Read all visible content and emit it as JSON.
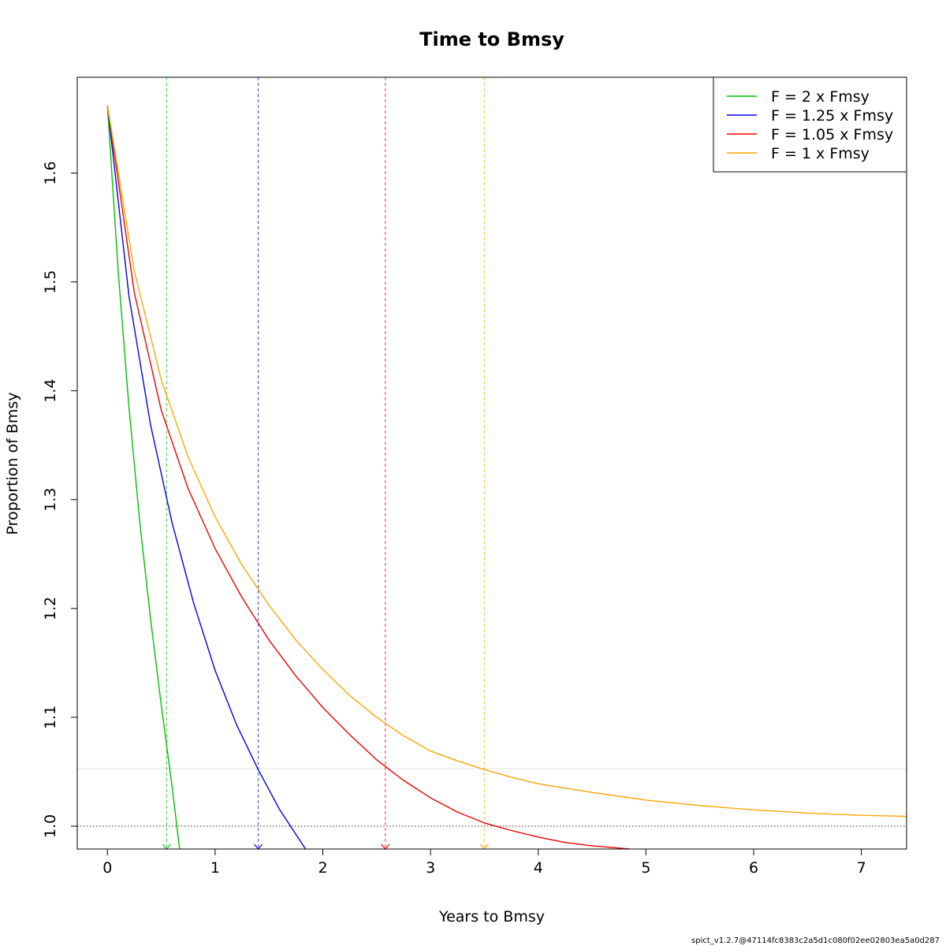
{
  "chart_data": {
    "type": "line",
    "title": "Time to Bmsy",
    "xlabel": "Years to Bmsy",
    "ylabel": "Proportion of Bmsy",
    "xlim": [
      -0.28,
      7.42
    ],
    "ylim": [
      0.979,
      1.688
    ],
    "xticks": [
      0,
      1,
      2,
      3,
      4,
      5,
      6,
      7
    ],
    "yticks": [
      1.0,
      1.1,
      1.2,
      1.3,
      1.4,
      1.5,
      1.6
    ],
    "ytick_labels": [
      "1.0",
      "1.1",
      "1.2",
      "1.3",
      "1.4",
      "1.5",
      "1.6"
    ],
    "grid": false,
    "legend_position": "top-right",
    "reference_lines": [
      {
        "y": 1.0,
        "style": "dotted",
        "color": "#555555"
      },
      {
        "y": 1.053,
        "style": "solid",
        "color": "#e6e6e6"
      }
    ],
    "series": [
      {
        "name": "F = 2 x Fmsy",
        "color": "#00c000",
        "t_target": 0.55,
        "x": [
          0,
          0.1,
          0.2,
          0.3,
          0.4,
          0.5,
          0.6,
          0.67
        ],
        "y": [
          1.662,
          1.51,
          1.385,
          1.28,
          1.191,
          1.111,
          1.037,
          0.979
        ]
      },
      {
        "name": "F = 1.25 x Fmsy",
        "color": "#0000ee",
        "t_target": 1.4,
        "x": [
          0,
          0.2,
          0.4,
          0.6,
          0.8,
          1.0,
          1.2,
          1.4,
          1.6,
          1.84
        ],
        "y": [
          1.662,
          1.487,
          1.369,
          1.279,
          1.205,
          1.143,
          1.093,
          1.052,
          1.015,
          0.979
        ]
      },
      {
        "name": "F = 1.05 x Fmsy",
        "color": "#ee0000",
        "t_target": 2.58,
        "x": [
          0,
          0.25,
          0.5,
          0.75,
          1.0,
          1.25,
          1.5,
          1.75,
          2.0,
          2.25,
          2.5,
          2.75,
          3.0,
          3.25,
          3.5,
          3.75,
          4.0,
          4.25,
          4.5,
          4.85
        ],
        "y": [
          1.662,
          1.49,
          1.382,
          1.31,
          1.255,
          1.21,
          1.171,
          1.138,
          1.109,
          1.084,
          1.061,
          1.042,
          1.026,
          1.013,
          1.003,
          0.996,
          0.99,
          0.985,
          0.982,
          0.979
        ]
      },
      {
        "name": "F = 1 x Fmsy",
        "color": "#ffa500",
        "t_target": 3.5,
        "x": [
          0,
          0.25,
          0.5,
          0.75,
          1.0,
          1.25,
          1.5,
          1.75,
          2.0,
          2.25,
          2.5,
          2.75,
          3.0,
          3.25,
          3.5,
          3.75,
          4.0,
          4.5,
          5.0,
          5.5,
          6.0,
          6.5,
          7.0,
          7.42
        ],
        "y": [
          1.662,
          1.51,
          1.41,
          1.339,
          1.284,
          1.24,
          1.203,
          1.171,
          1.144,
          1.12,
          1.1,
          1.083,
          1.069,
          1.06,
          1.052,
          1.045,
          1.039,
          1.031,
          1.024,
          1.019,
          1.015,
          1.012,
          1.01,
          1.009
        ]
      }
    ]
  },
  "footer": "spict_v1.2.7@47114fc8383c2a5d1c080f02ee02803ea5a0d287"
}
